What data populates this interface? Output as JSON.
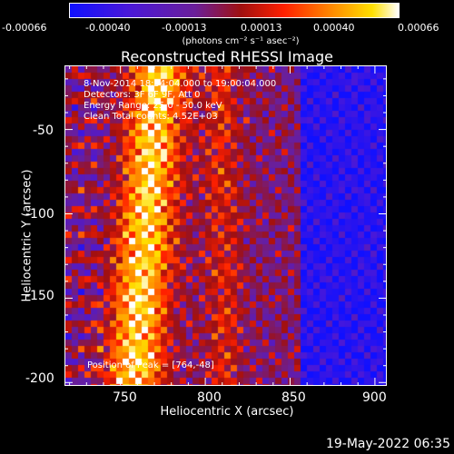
{
  "colorbar": {
    "ticks": [
      "-0.00066",
      "-0.00040",
      "-0.00013",
      "0.00013",
      "0.00040",
      "0.00066"
    ],
    "unit_label": "(photons cm⁻² s⁻¹ asec⁻²)"
  },
  "annotation": {
    "time": "8-Nov-2014 18:54:04.000 to 19:00:04.000",
    "detectors": "Detectors: 3F 6F 9F, Att 0",
    "energy": "Energy Range: 25.0 - 50.0 keV",
    "clean": "Clean    Total counts: 4.52E+03",
    "peak": "Position of Peak = [764,-48]"
  },
  "timestamp": "19-May-2022 06:35",
  "chart_data": {
    "type": "heatmap",
    "title": "Reconstructed RHESSI Image",
    "xlabel": "Heliocentric X (arcsec)",
    "ylabel": "Heliocentric Y (arcsec)",
    "xlim": [
      717,
      907
    ],
    "ylim": [
      -202,
      -12
    ],
    "x_ticks": [
      "750",
      "800",
      "850",
      "900"
    ],
    "x_tick_values": [
      750,
      800,
      850,
      900
    ],
    "y_ticks": [
      "-50",
      "-100",
      "-150",
      "-200"
    ],
    "y_tick_values": [
      -50,
      -100,
      -150,
      -200
    ],
    "colorbar_range": [
      -0.00066,
      0.00066
    ],
    "peak": [
      764,
      -48
    ],
    "colors": {
      "low": "#1010ff",
      "mid": "#6a1f9a",
      "high": "#ffe000",
      "max": "#ffffff"
    }
  }
}
